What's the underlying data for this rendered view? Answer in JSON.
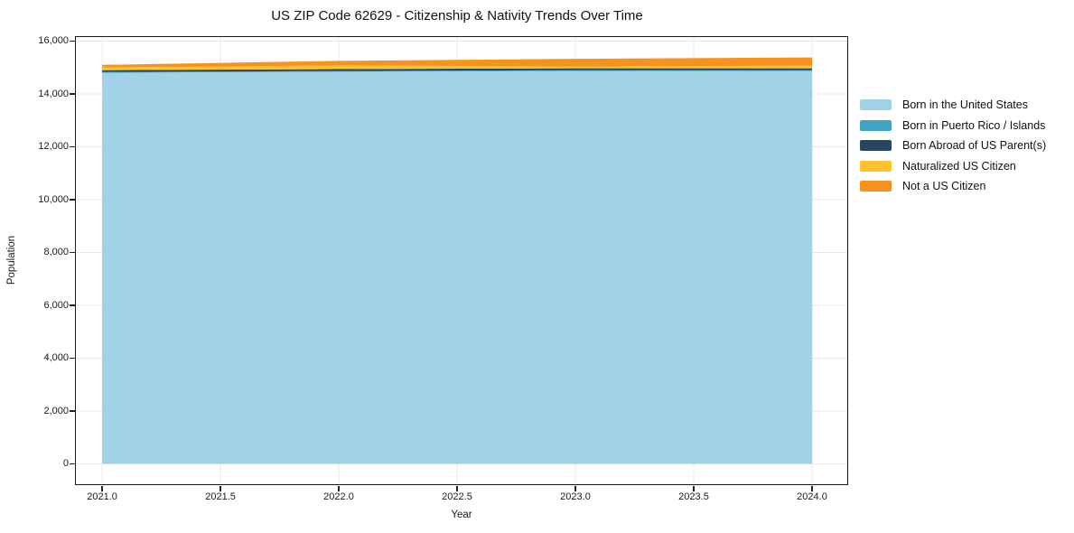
{
  "title": "US ZIP Code 62629 - Citizenship & Nativity Trends Over Time",
  "chart_data": {
    "type": "area",
    "stacked": true,
    "title": "US ZIP Code 62629 - Citizenship & Nativity Trends Over Time",
    "xlabel": "Year",
    "ylabel": "Population",
    "x": [
      2021,
      2022,
      2023,
      2024
    ],
    "series": [
      {
        "name": "Born in the United States",
        "color": "#a2d2e8",
        "values": [
          14800,
          14840,
          14870,
          14870
        ]
      },
      {
        "name": "Born in Puerto Rico / Islands",
        "color": "#3fa5c3",
        "values": [
          30,
          30,
          30,
          30
        ]
      },
      {
        "name": "Born Abroad of US Parent(s)",
        "color": "#27465f",
        "values": [
          70,
          70,
          70,
          70
        ]
      },
      {
        "name": "Naturalized US Citizen",
        "color": "#fcc32f",
        "values": [
          100,
          140,
          70,
          100
        ]
      },
      {
        "name": "Not a US Citizen",
        "color": "#f6931e",
        "values": [
          100,
          170,
          290,
          310
        ]
      }
    ],
    "totals": [
      15100,
      15250,
      15330,
      15380
    ],
    "xlim": [
      2020.889,
      2024.149
    ],
    "ylim": [
      -769,
      16154
    ],
    "x_ticks": [
      2021.0,
      2021.5,
      2022.0,
      2022.5,
      2023.0,
      2023.5,
      2024.0
    ],
    "x_tick_labels": [
      "2021.0",
      "2021.5",
      "2022.0",
      "2022.5",
      "2023.0",
      "2023.5",
      "2024.0"
    ],
    "y_ticks": [
      0,
      2000,
      4000,
      6000,
      8000,
      10000,
      12000,
      14000,
      16000
    ],
    "y_tick_labels": [
      "0",
      "2,000",
      "4,000",
      "6,000",
      "8,000",
      "10,000",
      "12,000",
      "14,000",
      "16,000"
    ],
    "grid": true,
    "gridline_color": "#e8e8e8",
    "legend_position": "right-outside"
  }
}
